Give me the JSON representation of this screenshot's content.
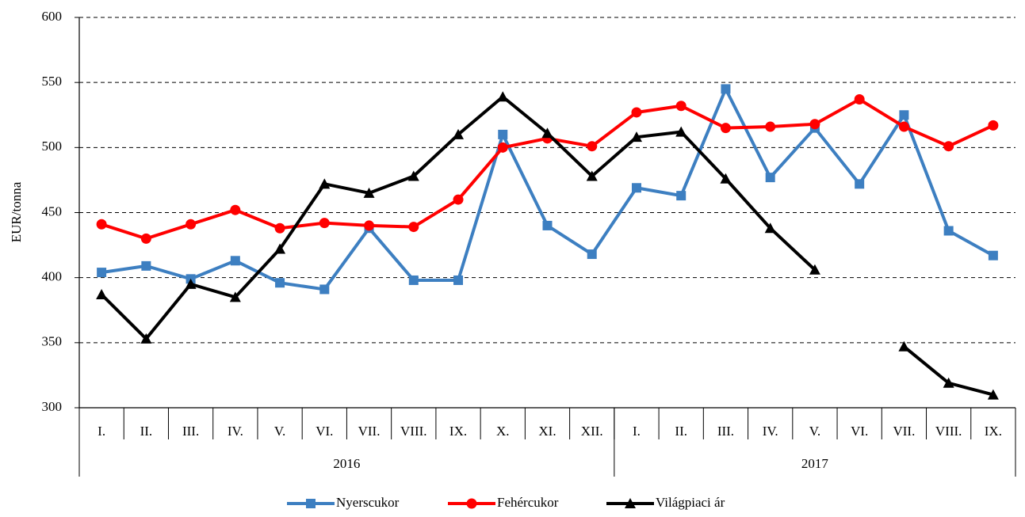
{
  "chart_data": {
    "type": "line",
    "y_label": "EUR/tonna",
    "categories": [
      "I.",
      "II.",
      "III.",
      "IV.",
      "V.",
      "VI.",
      "VII.",
      "VIII.",
      "IX.",
      "X.",
      "XI.",
      "XII.",
      "I.",
      "II.",
      "III.",
      "IV.",
      "V.",
      "VI.",
      "VII.",
      "VIII.",
      "IX."
    ],
    "category_groups": [
      {
        "label": "2016",
        "count": 12
      },
      {
        "label": "2017",
        "count": 9
      }
    ],
    "series": [
      {
        "name": "Nyerscukor",
        "color": "#3d7fc1",
        "marker": "square",
        "values": [
          404,
          409,
          399,
          413,
          396,
          391,
          438,
          398,
          398,
          510,
          440,
          418,
          469,
          463,
          545,
          477,
          515,
          472,
          525,
          436,
          417
        ]
      },
      {
        "name": "Fehércukor",
        "color": "#ff0000",
        "marker": "circle",
        "values": [
          441,
          430,
          441,
          452,
          438,
          442,
          440,
          439,
          460,
          500,
          507,
          501,
          527,
          532,
          515,
          516,
          518,
          537,
          516,
          501,
          517
        ]
      },
      {
        "name": "Világpiaci ár",
        "color": "#000000",
        "marker": "triangle",
        "values": [
          387,
          353,
          395,
          385,
          422,
          472,
          465,
          478,
          510,
          539,
          511,
          478,
          508,
          512,
          476,
          438,
          406,
          null,
          347,
          319,
          310
        ]
      }
    ],
    "ylim": [
      300,
      600
    ],
    "yticks": [
      300,
      350,
      400,
      450,
      500,
      550,
      600
    ],
    "grid": true
  }
}
